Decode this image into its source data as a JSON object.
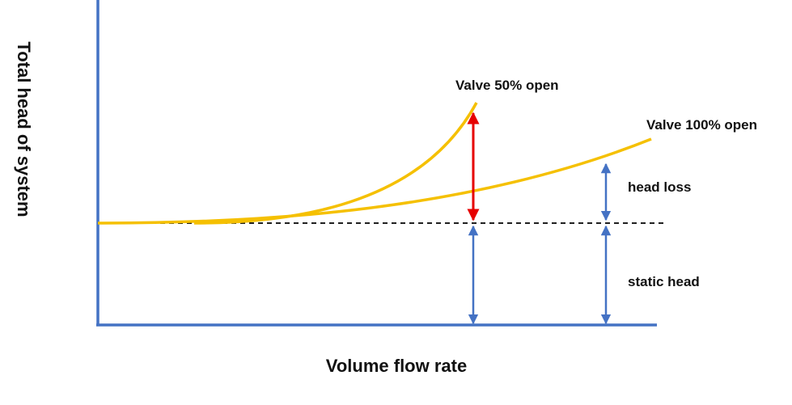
{
  "diagram": {
    "axes": {
      "x_label": "Volume flow rate",
      "y_label": "Total head of system"
    },
    "curves": [
      {
        "label": "Valve 50% open",
        "color": "#f5c000"
      },
      {
        "label": "Valve 100% open",
        "color": "#f5c000"
      }
    ],
    "annotations": {
      "head_loss": "head loss",
      "static_head": "static head"
    },
    "colors": {
      "axis": "#4472c4",
      "curve": "#f5c000",
      "arrow_blue": "#4472c4",
      "arrow_red": "#e60000",
      "static_line": "#000000"
    }
  }
}
